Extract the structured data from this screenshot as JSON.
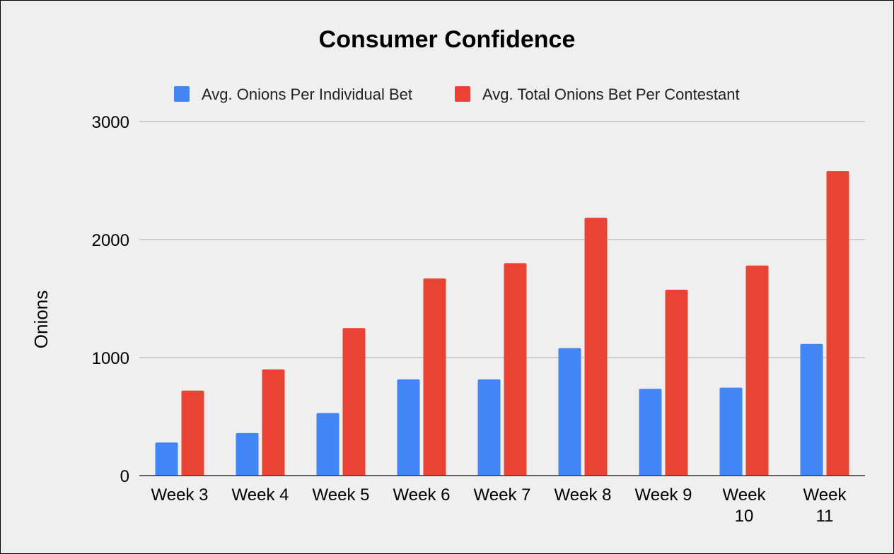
{
  "chart_data": {
    "type": "bar",
    "title": "Consumer Confidence",
    "xlabel": "",
    "ylabel": "Onions",
    "ylim": [
      0,
      3000
    ],
    "yticks": [
      0,
      1000,
      2000,
      3000
    ],
    "grid": true,
    "legend_position": "top",
    "categories": [
      [
        "Week 3"
      ],
      [
        "Week 4"
      ],
      [
        "Week 5"
      ],
      [
        "Week 6"
      ],
      [
        "Week 7"
      ],
      [
        "Week 8"
      ],
      [
        "Week 9"
      ],
      [
        "Week",
        "10"
      ],
      [
        "Week",
        "11"
      ]
    ],
    "series": [
      {
        "name": "Avg. Onions Per Individual Bet",
        "color": "#4285f4",
        "values": [
          280,
          360,
          530,
          815,
          815,
          1080,
          735,
          745,
          1115
        ]
      },
      {
        "name": "Avg. Total Onions Bet Per Contestant",
        "color": "#ea4335",
        "values": [
          720,
          900,
          1250,
          1670,
          1800,
          2185,
          1575,
          1780,
          2580
        ]
      }
    ]
  }
}
